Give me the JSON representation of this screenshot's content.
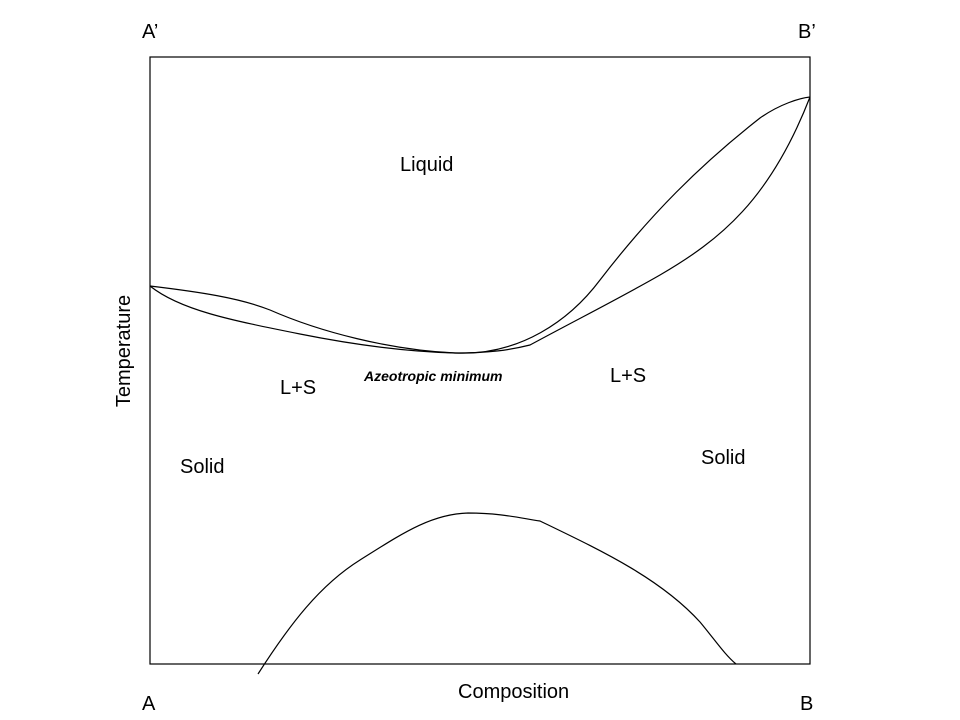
{
  "diagram": {
    "corner_labels": {
      "top_left": "A’",
      "top_right": "B’",
      "bottom_left": "A",
      "bottom_right": "B"
    },
    "axes": {
      "x_label": "Composition",
      "y_label": "Temperature"
    },
    "regions": {
      "liquid": "Liquid",
      "left_two_phase": "L+S",
      "right_two_phase": "L+S",
      "left_solid": "Solid",
      "right_solid": "Solid"
    },
    "annotations": {
      "azeotrope": "Azeotropic minimum"
    },
    "colors": {
      "line": "#000000",
      "background": "#ffffff"
    }
  }
}
